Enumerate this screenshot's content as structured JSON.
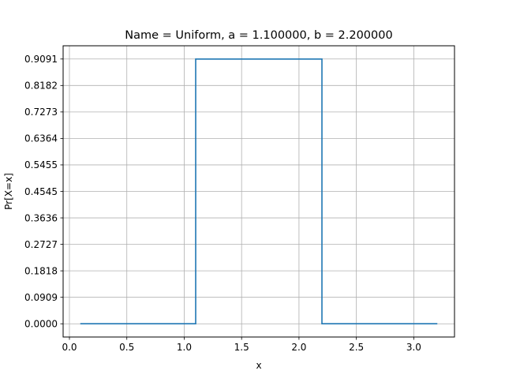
{
  "chart_data": {
    "type": "line",
    "title": "Name = Uniform, a = 1.100000, b = 2.200000",
    "xlabel": "x",
    "ylabel": "Pr[X=x]",
    "xlim": [
      -0.055,
      3.355
    ],
    "ylim": [
      -0.04545,
      0.95455
    ],
    "xticks": [
      0.0,
      0.5,
      1.0,
      1.5,
      2.0,
      2.5,
      3.0
    ],
    "xtick_labels": [
      "0.0",
      "0.5",
      "1.0",
      "1.5",
      "2.0",
      "2.5",
      "3.0"
    ],
    "yticks": [
      0.0,
      0.0909,
      0.1818,
      0.2727,
      0.3636,
      0.4545,
      0.5455,
      0.6364,
      0.7273,
      0.8182,
      0.9091
    ],
    "ytick_labels": [
      "0.0000",
      "0.0909",
      "0.1818",
      "0.2727",
      "0.3636",
      "0.4545",
      "0.5455",
      "0.6364",
      "0.7273",
      "0.8182",
      "0.9091"
    ],
    "grid": true,
    "series": [
      {
        "color": "#1f77b4",
        "x": [
          0.1,
          1.1,
          1.1,
          2.2,
          2.2,
          3.2
        ],
        "y": [
          0.0,
          0.0,
          0.9091,
          0.9091,
          0.0,
          0.0
        ]
      }
    ]
  }
}
